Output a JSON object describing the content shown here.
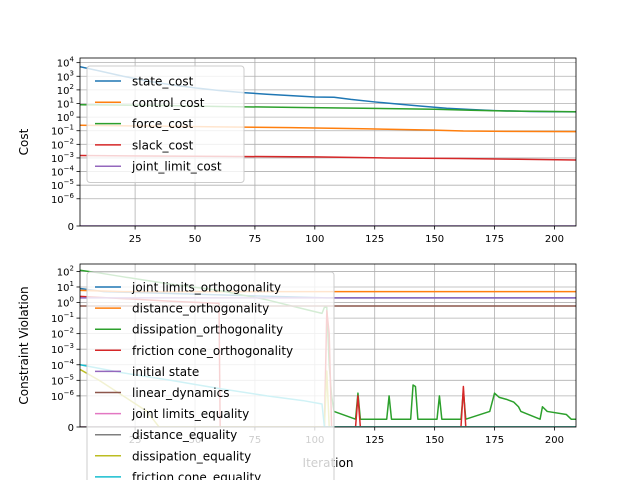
{
  "chart_data": [
    {
      "type": "line",
      "xlabel": "",
      "ylabel": "Cost",
      "xlim": [
        2,
        209
      ],
      "yscale": "symlog",
      "linthresh": 1e-07,
      "grid": true,
      "legend_loc": "upper-left",
      "xticks": [
        25,
        50,
        75,
        100,
        125,
        150,
        175,
        200
      ],
      "xtick_labels": [
        "25",
        "50",
        "75",
        "100",
        "125",
        "150",
        "175",
        "200"
      ],
      "yticks": [
        0,
        1e-06,
        1e-05,
        0.0001,
        0.001,
        0.01,
        0.1,
        1,
        10,
        100,
        1000,
        10000
      ],
      "ytick_labels": [
        {
          "base": "0",
          "exp": ""
        },
        {
          "base": "10",
          "exp": "−6"
        },
        {
          "base": "10",
          "exp": "−5"
        },
        {
          "base": "10",
          "exp": "−4"
        },
        {
          "base": "10",
          "exp": "−3"
        },
        {
          "base": "10",
          "exp": "−2"
        },
        {
          "base": "10",
          "exp": "−1"
        },
        {
          "base": "10",
          "exp": "0"
        },
        {
          "base": "10",
          "exp": "1"
        },
        {
          "base": "10",
          "exp": "2"
        },
        {
          "base": "10",
          "exp": "3"
        },
        {
          "base": "10",
          "exp": "4"
        }
      ],
      "series": [
        {
          "name": "state_cost",
          "color": "#1f77b4",
          "points": [
            [
              2,
              5000
            ],
            [
              10,
              2500
            ],
            [
              20,
              1000
            ],
            [
              30,
              450
            ],
            [
              40,
              240
            ],
            [
              50,
              140
            ],
            [
              60,
              90
            ],
            [
              70,
              63
            ],
            [
              80,
              48
            ],
            [
              90,
              38
            ],
            [
              100,
              30
            ],
            [
              108,
              29
            ],
            [
              115,
              20
            ],
            [
              125,
              13
            ],
            [
              135,
              9
            ],
            [
              145,
              6.3
            ],
            [
              155,
              4.5
            ],
            [
              165,
              3.6
            ],
            [
              175,
              3.0
            ],
            [
              190,
              2.6
            ],
            [
              209,
              2.4
            ]
          ]
        },
        {
          "name": "control_cost",
          "color": "#ff7f0e",
          "points": [
            [
              2,
              0.25
            ],
            [
              30,
              0.22
            ],
            [
              60,
              0.19
            ],
            [
              90,
              0.17
            ],
            [
              120,
              0.14
            ],
            [
              150,
              0.11
            ],
            [
              162,
              0.095
            ],
            [
              180,
              0.09
            ],
            [
              209,
              0.085
            ]
          ]
        },
        {
          "name": "force_cost",
          "color": "#2ca02c",
          "points": [
            [
              2,
              8
            ],
            [
              30,
              7.5
            ],
            [
              60,
              6
            ],
            [
              90,
              5.2
            ],
            [
              120,
              4.5
            ],
            [
              150,
              3.8
            ],
            [
              165,
              3.2
            ],
            [
              180,
              2.8
            ],
            [
              209,
              2.5
            ]
          ]
        },
        {
          "name": "slack_cost",
          "color": "#d62728",
          "points": [
            [
              2,
              0.0015
            ],
            [
              30,
              0.0014
            ],
            [
              60,
              0.0013
            ],
            [
              100,
              0.0012
            ],
            [
              130,
              0.001
            ],
            [
              160,
              0.0009
            ],
            [
              185,
              0.0008
            ],
            [
              209,
              0.0007
            ]
          ]
        },
        {
          "name": "joint_limit_cost",
          "color": "#9467bd",
          "points": [
            [
              2,
              0
            ],
            [
              209,
              0
            ]
          ]
        }
      ]
    },
    {
      "type": "line",
      "xlabel": "Iteration",
      "ylabel": "Constraint Violation",
      "xlim": [
        2,
        209
      ],
      "yscale": "symlog",
      "linthresh": 1e-07,
      "grid": true,
      "legend_loc": "upper-left",
      "xticks": [
        25,
        50,
        75,
        100,
        125,
        150,
        175,
        200
      ],
      "xtick_labels": [
        "25",
        "50",
        "75",
        "100",
        "125",
        "150",
        "175",
        "200"
      ],
      "yticks": [
        0,
        1e-06,
        1e-05,
        0.0001,
        0.001,
        0.01,
        0.1,
        1,
        10,
        100
      ],
      "ytick_labels": [
        {
          "base": "0",
          "exp": ""
        },
        {
          "base": "10",
          "exp": "−6"
        },
        {
          "base": "10",
          "exp": "−5"
        },
        {
          "base": "10",
          "exp": "−4"
        },
        {
          "base": "10",
          "exp": "−3"
        },
        {
          "base": "10",
          "exp": "−2"
        },
        {
          "base": "10",
          "exp": "−1"
        },
        {
          "base": "10",
          "exp": "0"
        },
        {
          "base": "10",
          "exp": "1"
        },
        {
          "base": "10",
          "exp": "2"
        }
      ],
      "series": [
        {
          "name": "joint limits_orthogonality",
          "color": "#1f77b4",
          "points": [
            [
              2,
              8
            ],
            [
              8,
              6
            ],
            [
              12,
              5
            ],
            [
              105,
              2
            ],
            [
              209,
              2
            ]
          ]
        },
        {
          "name": "distance_orthogonality",
          "color": "#ff7f0e",
          "points": [
            [
              2,
              6
            ],
            [
              20,
              5
            ],
            [
              209,
              5
            ]
          ]
        },
        {
          "name": "dissipation_orthogonality",
          "color": "#2ca02c",
          "points": [
            [
              2,
              120
            ],
            [
              10,
              80
            ],
            [
              20,
              45
            ],
            [
              40,
              15
            ],
            [
              60,
              6
            ],
            [
              80,
              1.5
            ],
            [
              95,
              0.4
            ],
            [
              103,
              0.2
            ],
            [
              104,
              0.5
            ],
            [
              105,
              0.5
            ],
            [
              106,
              0.0001
            ],
            [
              107,
              1e-06
            ],
            [
              108,
              1e-07
            ],
            [
              117,
              5e-08
            ],
            [
              118,
              1.5e-06
            ],
            [
              119,
              5e-08
            ],
            [
              130,
              5e-08
            ],
            [
              131,
              1e-06
            ],
            [
              132,
              5e-08
            ],
            [
              140,
              5e-08
            ],
            [
              141,
              5e-06
            ],
            [
              142,
              4e-06
            ],
            [
              143,
              5e-08
            ],
            [
              151,
              5e-08
            ],
            [
              152,
              1e-06
            ],
            [
              153,
              5e-08
            ],
            [
              161,
              5e-08
            ],
            [
              162,
              2e-06
            ],
            [
              163,
              5e-08
            ],
            [
              173,
              1e-07
            ],
            [
              175,
              1.5e-06
            ],
            [
              177,
              8e-07
            ],
            [
              180,
              6e-07
            ],
            [
              183,
              4e-07
            ],
            [
              185,
              2e-07
            ],
            [
              186,
              1e-07
            ],
            [
              194,
              5e-08
            ],
            [
              195,
              2e-07
            ],
            [
              197,
              1e-07
            ],
            [
              205,
              8e-08
            ],
            [
              207,
              5e-08
            ],
            [
              209,
              5e-08
            ]
          ]
        },
        {
          "name": "friction cone_orthogonality",
          "color": "#d62728",
          "points": [
            [
              2,
              2.5
            ],
            [
              20,
              1.8
            ],
            [
              40,
              1.2
            ],
            [
              59,
              0.9
            ],
            [
              60,
              0.9
            ],
            [
              60.5,
              0
            ],
            [
              104,
              0
            ],
            [
              105,
              0.3
            ],
            [
              106,
              0.01
            ],
            [
              107,
              0
            ],
            [
              117,
              0
            ],
            [
              118,
              1e-06
            ],
            [
              119,
              0
            ],
            [
              161,
              0
            ],
            [
              162,
              4e-06
            ],
            [
              163,
              0
            ],
            [
              209,
              0
            ]
          ]
        },
        {
          "name": "initial state",
          "color": "#9467bd",
          "points": [
            [
              2,
              2
            ],
            [
              209,
              2
            ]
          ]
        },
        {
          "name": "linear_dynamics",
          "color": "#8c564b",
          "points": [
            [
              2,
              0.6
            ],
            [
              209,
              0.6
            ]
          ]
        },
        {
          "name": "joint limits_equality",
          "color": "#e377c2",
          "points": [
            [
              2,
              0
            ],
            [
              209,
              0
            ]
          ]
        },
        {
          "name": "distance_equality",
          "color": "#7f7f7f",
          "points": [
            [
              2,
              0
            ],
            [
              209,
              0
            ]
          ]
        },
        {
          "name": "dissipation_equality",
          "color": "#bcbd22",
          "points": [
            [
              2,
              5e-05
            ],
            [
              10,
              1e-05
            ],
            [
              20,
              1e-06
            ],
            [
              30,
              1e-07
            ],
            [
              35,
              0
            ],
            [
              104,
              0
            ],
            [
              105,
              4e-05
            ],
            [
              106,
              0
            ],
            [
              209,
              0
            ]
          ]
        },
        {
          "name": "friction cone_equality",
          "color": "#17becf",
          "points": [
            [
              2,
              0.0001
            ],
            [
              20,
              3e-05
            ],
            [
              40,
              1e-05
            ],
            [
              60,
              3e-06
            ],
            [
              80,
              1e-06
            ],
            [
              95,
              5e-07
            ],
            [
              103,
              3e-07
            ],
            [
              104,
              0
            ],
            [
              209,
              0
            ]
          ]
        }
      ]
    }
  ]
}
